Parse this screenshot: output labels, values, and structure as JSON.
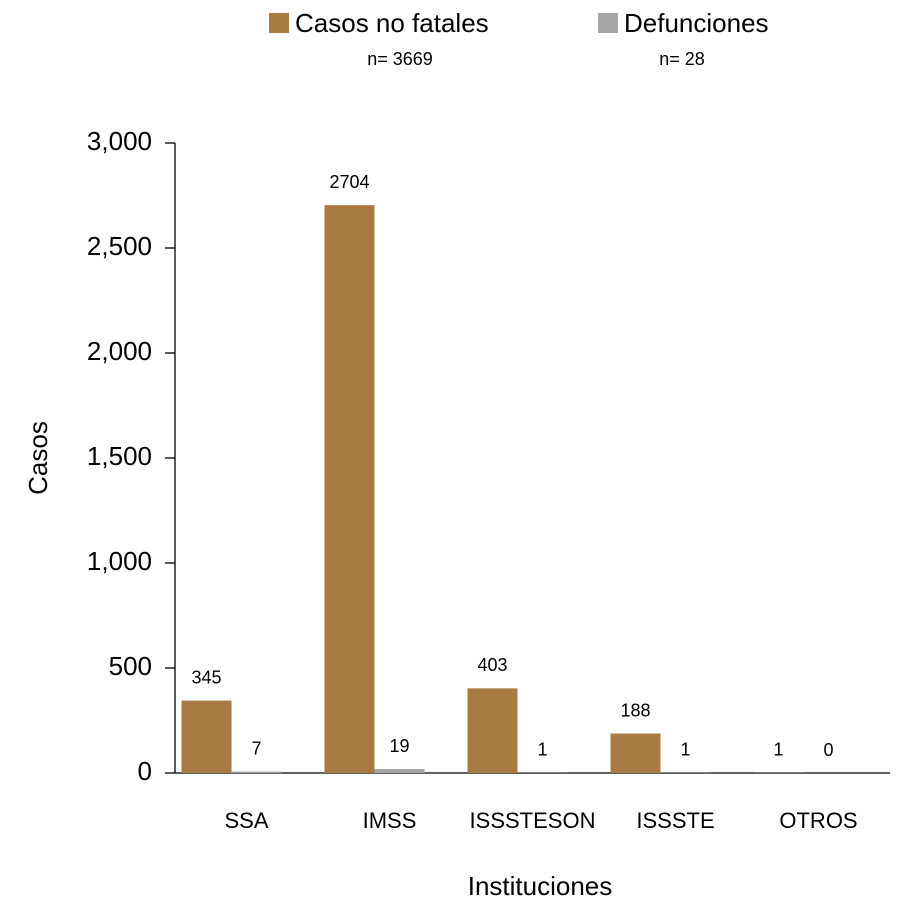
{
  "chart_data": {
    "type": "bar",
    "categories": [
      "SSA",
      "IMSS",
      "ISSSTESON",
      "ISSSTE",
      "OTROS"
    ],
    "series": [
      {
        "name": "Casos no fatales",
        "n_label": "n= 3669",
        "color": "#a87a44",
        "values": [
          345,
          2704,
          403,
          188,
          1
        ]
      },
      {
        "name": "Defunciones",
        "n_label": "n= 28",
        "color": "#a6a6a6",
        "values": [
          7,
          19,
          1,
          1,
          0
        ]
      }
    ],
    "x_label": "Instituciones",
    "y_label": "Casos",
    "ylim": [
      0,
      3000
    ],
    "yticks": [
      0,
      500,
      {
        "value": 1000,
        "label": "1,000"
      },
      {
        "value": 1500,
        "label": "1,500"
      },
      {
        "value": 2000,
        "label": "2,000"
      },
      {
        "value": 2500,
        "label": "2,500"
      },
      {
        "value": 3000,
        "label": "3,000"
      }
    ],
    "legend": "top",
    "grid": false
  }
}
